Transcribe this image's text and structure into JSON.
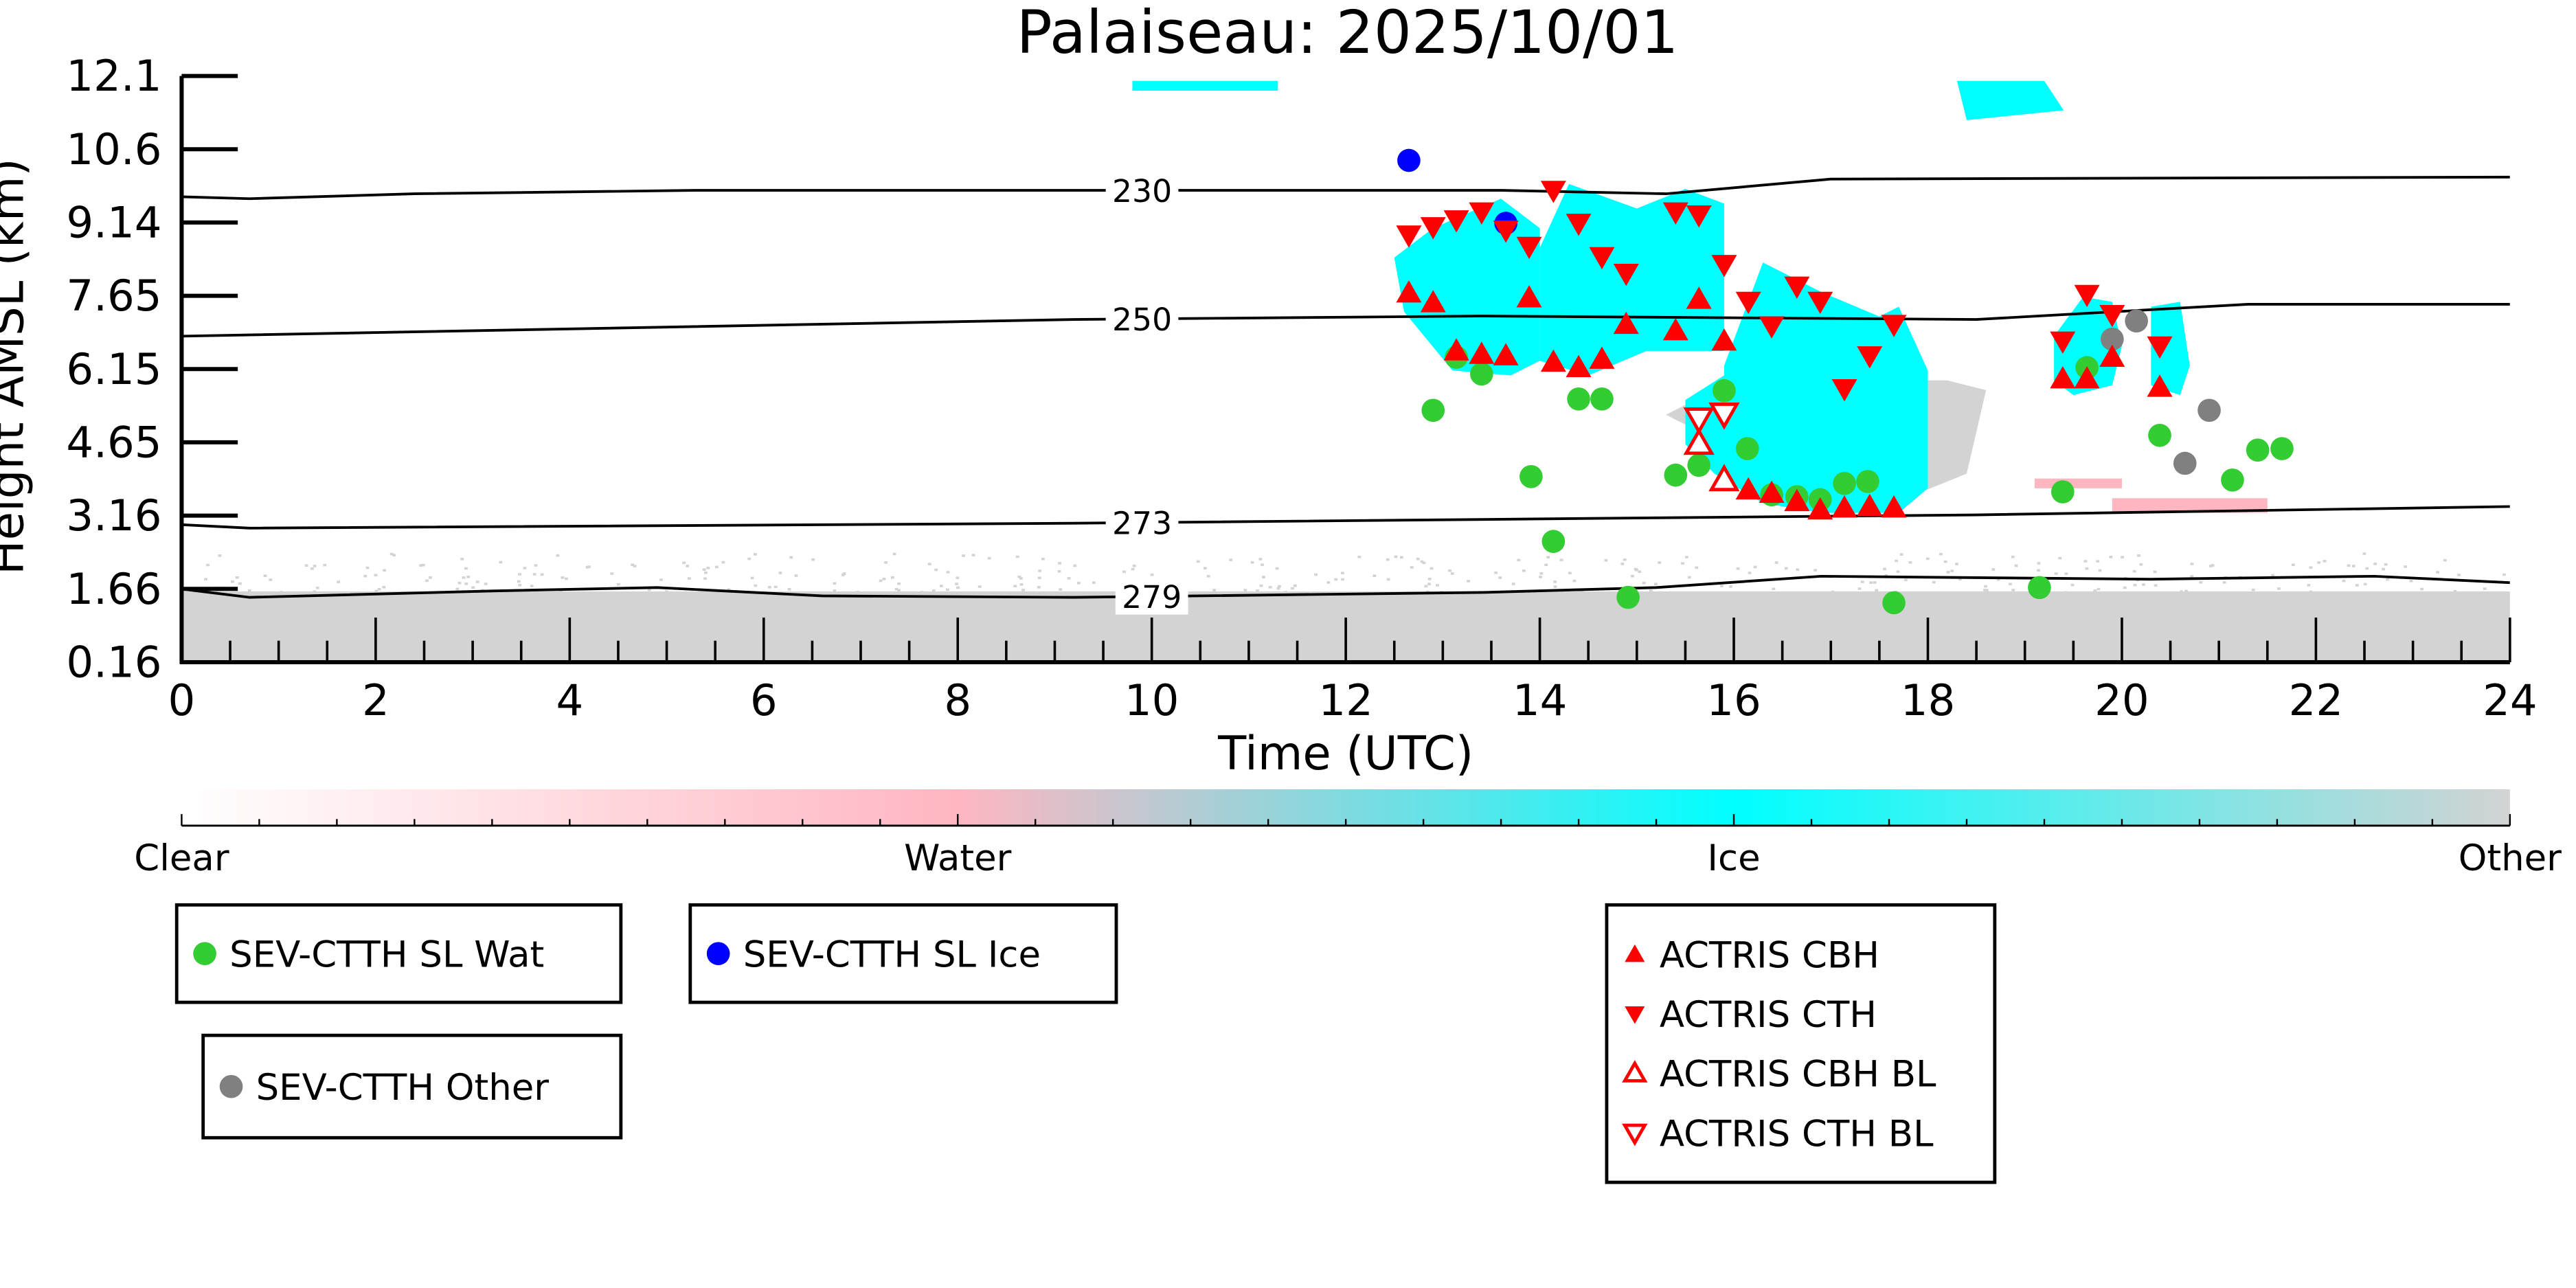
{
  "chart_data": {
    "type": "scatter",
    "title": "Palaiseau: 2025/10/01",
    "xlabel": "Time (UTC)",
    "ylabel": "Height AMSL (km)",
    "xlim": [
      0,
      24
    ],
    "ylim": [
      0.16,
      12.1
    ],
    "xticks": [
      "0",
      "2",
      "4",
      "6",
      "8",
      "10",
      "12",
      "14",
      "16",
      "18",
      "20",
      "22",
      "24"
    ],
    "yticks": [
      "0.16",
      "1.66",
      "3.16",
      "4.65",
      "6.15",
      "7.65",
      "9.14",
      "10.6",
      "12.1"
    ],
    "colorbar": {
      "labels": [
        "Clear",
        "Water",
        "Ice",
        "Other"
      ],
      "colors": [
        "#ffffff",
        "#ffb6c1",
        "#00ffff",
        "#d3d3d3"
      ]
    },
    "background_classes": [
      {
        "class": "Other",
        "color": "#d3d3d3",
        "t": [
          0,
          24,
          24,
          0
        ],
        "h": [
          0.16,
          0.16,
          1.6,
          1.6
        ]
      },
      {
        "class": "Ice",
        "color": "#00ffff",
        "t": [
          12.5,
          12.9,
          13.6,
          14.0,
          14.0,
          13.7,
          13.1,
          12.6
        ],
        "h": [
          8.4,
          9.0,
          9.6,
          9.0,
          6.3,
          6.0,
          6.1,
          7.3
        ]
      },
      {
        "class": "Ice",
        "color": "#00ffff",
        "t": [
          14.0,
          14.3,
          15.0,
          15.5,
          15.9,
          15.9,
          15.1,
          14.5,
          14.0
        ],
        "h": [
          8.6,
          9.9,
          9.4,
          9.8,
          9.5,
          6.5,
          6.5,
          6.0,
          6.3
        ]
      },
      {
        "class": "Other",
        "color": "#d3d3d3",
        "t": [
          15.3,
          16.0,
          18.2,
          18.6,
          18.4,
          17.9,
          16.2,
          15.5
        ],
        "h": [
          5.2,
          5.9,
          5.9,
          5.7,
          4.0,
          3.6,
          4.2,
          5.0
        ]
      },
      {
        "class": "Ice",
        "color": "#00ffff",
        "t": [
          15.9,
          16.3,
          16.9,
          17.5,
          17.7,
          18.0,
          18.0,
          17.7,
          16.9,
          16.3,
          15.8,
          15.5,
          15.5,
          15.9
        ],
        "h": [
          6.2,
          8.3,
          7.7,
          7.2,
          7.4,
          6.1,
          3.7,
          3.2,
          3.2,
          3.4,
          4.0,
          4.6,
          5.5,
          6.0
        ]
      },
      {
        "class": "Ice",
        "color": "#00ffff",
        "t": [
          19.3,
          19.6,
          19.9,
          20.0,
          19.9,
          19.5,
          19.3
        ],
        "h": [
          6.8,
          7.6,
          7.5,
          6.6,
          5.8,
          5.6,
          5.9
        ]
      },
      {
        "class": "Ice",
        "color": "#00ffff",
        "t": [
          20.3,
          20.6,
          20.7,
          20.6,
          20.3
        ],
        "h": [
          7.4,
          7.5,
          6.2,
          5.6,
          5.8
        ]
      },
      {
        "class": "Ice",
        "color": "#00ffff",
        "t": [
          9.8,
          11.3,
          11.3,
          9.8
        ],
        "h": [
          12.0,
          12.0,
          11.8,
          11.8
        ]
      },
      {
        "class": "Ice",
        "color": "#00ffff",
        "t": [
          18.3,
          19.2,
          19.4,
          18.4
        ],
        "h": [
          12.0,
          12.0,
          11.4,
          11.2
        ]
      },
      {
        "class": "Water",
        "color": "#ffb6c1",
        "t": [
          19.1,
          20.0,
          20.0,
          19.1
        ],
        "h": [
          3.9,
          3.9,
          3.7,
          3.7
        ]
      },
      {
        "class": "Water",
        "color": "#ffb6c1",
        "t": [
          19.9,
          21.5,
          21.5,
          19.9
        ],
        "h": [
          3.5,
          3.5,
          3.2,
          3.2
        ]
      }
    ],
    "contours": [
      {
        "label": "230",
        "label_t": 9.9,
        "t": [
          0,
          0.7,
          2.4,
          5.3,
          9.3,
          13.6,
          15.3,
          17.0,
          24
        ],
        "h": [
          9.64,
          9.6,
          9.7,
          9.77,
          9.77,
          9.77,
          9.7,
          10.0,
          10.04
        ]
      },
      {
        "label": "250",
        "label_t": 9.9,
        "t": [
          0,
          9.2,
          13.4,
          18.5,
          21.3,
          24
        ],
        "h": [
          6.8,
          7.14,
          7.21,
          7.14,
          7.45,
          7.45
        ]
      },
      {
        "label": "273",
        "label_t": 9.9,
        "t": [
          0,
          0.7,
          9.2,
          15.2,
          18.5,
          24
        ],
        "h": [
          2.96,
          2.89,
          2.99,
          3.1,
          3.16,
          3.33
        ]
      },
      {
        "label": "279",
        "label_t": 10.0,
        "t": [
          0,
          0.7,
          3.2,
          4.9,
          6.6,
          9.2,
          13.4,
          15.2,
          16.9,
          20.3,
          22.6,
          24
        ],
        "h": [
          1.65,
          1.48,
          1.61,
          1.68,
          1.51,
          1.48,
          1.58,
          1.68,
          1.91,
          1.85,
          1.91,
          1.78
        ]
      }
    ],
    "series": [
      {
        "name": "SEV-CTTH SL Wat",
        "marker": "circle",
        "color": "#33cc33",
        "t": [
          12.9,
          13.14,
          13.4,
          13.91,
          14.14,
          14.4,
          14.64,
          14.91,
          15.4,
          15.64,
          15.9,
          16.14,
          16.39,
          16.65,
          16.89,
          17.14,
          17.38,
          17.65,
          19.15,
          19.39,
          19.64,
          20.39,
          21.14,
          21.4,
          21.65
        ],
        "h": [
          5.29,
          6.37,
          6.03,
          3.94,
          2.62,
          5.52,
          5.52,
          1.48,
          3.97,
          4.17,
          5.69,
          4.51,
          3.57,
          3.53,
          3.47,
          3.8,
          3.84,
          1.37,
          1.68,
          3.63,
          6.16,
          4.78,
          3.87,
          4.48,
          4.51
        ]
      },
      {
        "name": "SEV-CTTH SL Ice",
        "marker": "circle",
        "color": "#0000ff",
        "t": [
          12.65,
          13.65
        ],
        "h": [
          10.38,
          9.1
        ]
      },
      {
        "name": "SEV-CTTH Other",
        "marker": "circle",
        "color": "#808080",
        "t": [
          19.9,
          20.15,
          20.65,
          20.9
        ],
        "h": [
          6.74,
          7.11,
          4.21,
          5.29
        ]
      },
      {
        "name": "ACTRIS CBH",
        "marker": "triangle-up",
        "color": "#ff0000",
        "t": [
          12.65,
          12.9,
          13.14,
          13.4,
          13.65,
          13.89,
          14.14,
          14.4,
          14.64,
          14.89,
          15.4,
          15.64,
          15.9,
          16.15,
          16.39,
          16.65,
          16.89,
          17.14,
          17.4,
          17.65,
          19.39,
          19.64,
          19.9,
          20.39
        ],
        "h": [
          7.68,
          7.48,
          6.5,
          6.43,
          6.4,
          7.58,
          6.27,
          6.16,
          6.33,
          7.04,
          6.91,
          7.55,
          6.7,
          3.67,
          3.6,
          3.43,
          3.26,
          3.3,
          3.33,
          3.3,
          5.93,
          5.93,
          6.37,
          5.76
        ]
      },
      {
        "name": "ACTRIS CTH",
        "marker": "triangle-down",
        "color": "#ff0000",
        "t": [
          12.65,
          12.9,
          13.14,
          13.4,
          13.65,
          13.89,
          14.14,
          14.4,
          14.64,
          14.89,
          15.4,
          15.64,
          15.9,
          16.15,
          16.39,
          16.65,
          16.89,
          17.14,
          17.4,
          17.65,
          19.39,
          19.64,
          19.9,
          20.39
        ],
        "h": [
          8.86,
          9.03,
          9.17,
          9.33,
          8.96,
          8.63,
          9.77,
          9.1,
          8.42,
          8.08,
          9.33,
          9.27,
          8.26,
          7.51,
          7.01,
          7.82,
          7.51,
          5.73,
          6.4,
          7.04,
          6.7,
          7.65,
          7.24,
          6.6
        ]
      },
      {
        "name": "ACTRIS CBH BL",
        "marker": "triangle-up-open",
        "color": "#ff0000",
        "t": [
          15.64,
          15.9
        ],
        "h": [
          4.61,
          3.87
        ]
      },
      {
        "name": "ACTRIS CTH BL",
        "marker": "triangle-down-open",
        "color": "#ff0000",
        "t": [
          15.64,
          15.9
        ],
        "h": [
          5.12,
          5.22
        ]
      }
    ],
    "legend_groups": [
      [
        0
      ],
      [
        1
      ],
      [
        2
      ],
      [
        3,
        4,
        5,
        6
      ]
    ]
  }
}
